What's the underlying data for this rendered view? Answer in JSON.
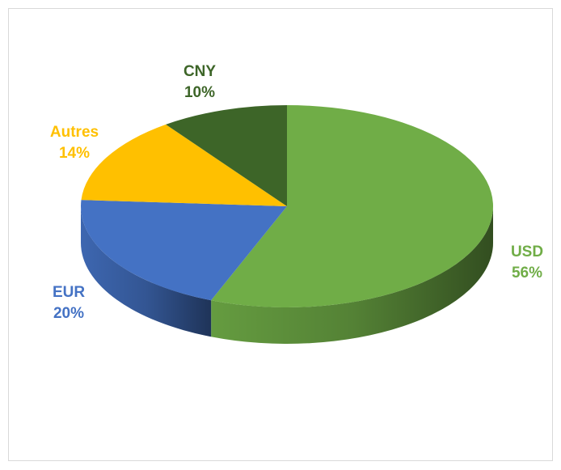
{
  "chart_data": {
    "type": "pie",
    "categories": [
      "USD",
      "EUR",
      "Autres",
      "CNY"
    ],
    "values": [
      56,
      20,
      14,
      10
    ],
    "value_labels": [
      "56%",
      "20%",
      "14%",
      "10%"
    ],
    "colors": [
      "#70ad47",
      "#4472c4",
      "#ffc000",
      "#3d6528"
    ]
  }
}
